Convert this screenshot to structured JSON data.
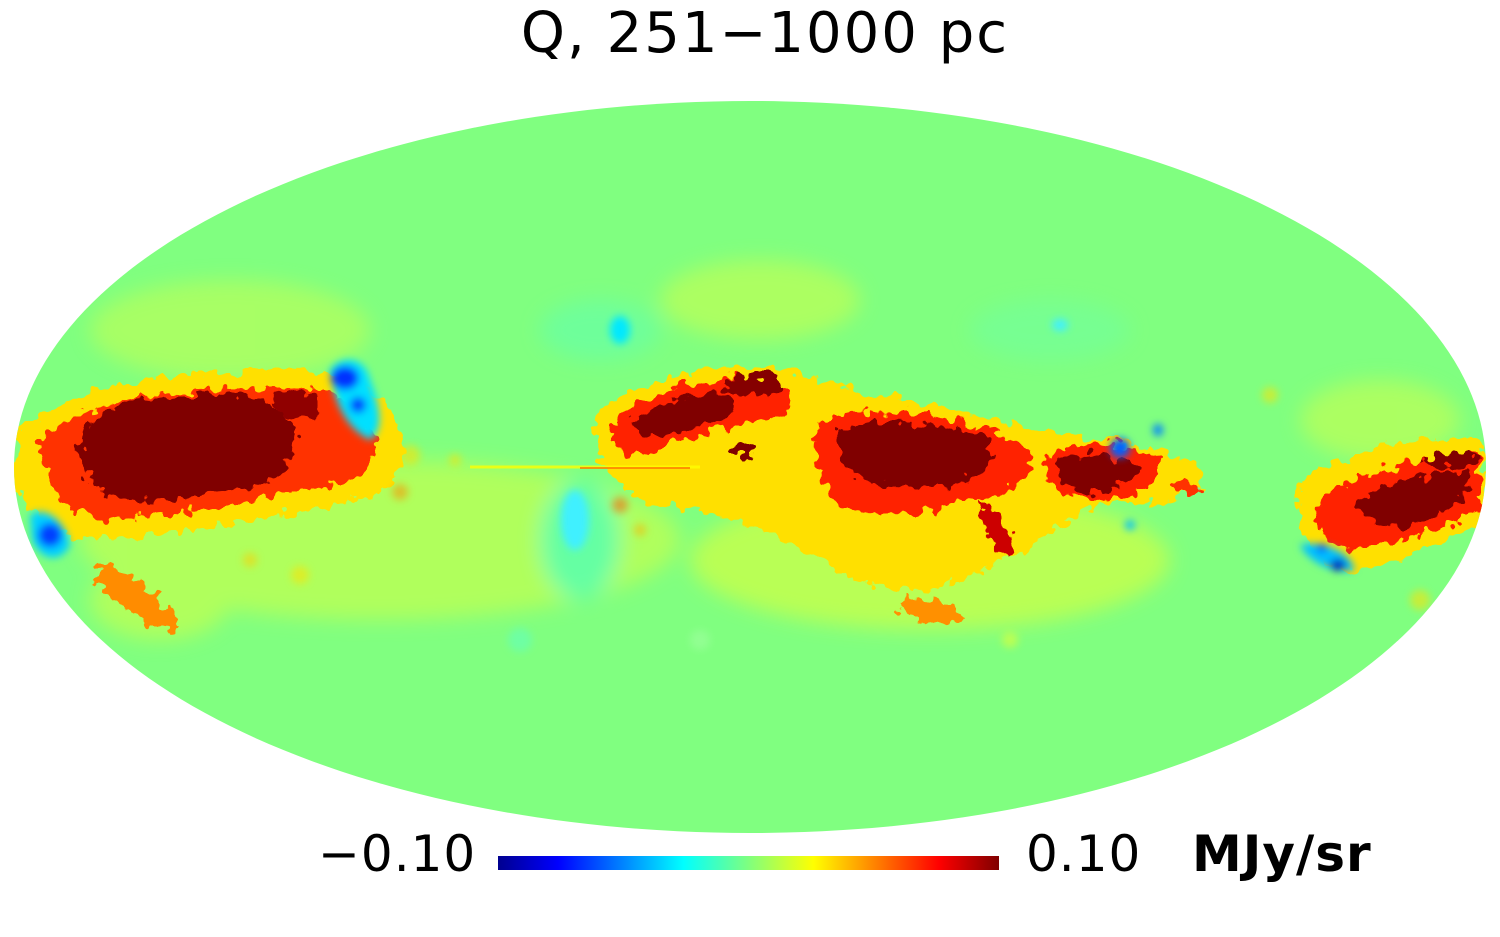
{
  "title": "Q, 251−1000 pc",
  "projection": "Mollweide all-sky",
  "colorbar": {
    "min_label": "−0.10",
    "max_label": "0.10",
    "unit": "MJy/sr",
    "min": -0.1,
    "max": 0.1,
    "colormap": "jet",
    "colors": [
      "#00008f",
      "#0000ff",
      "#00ffff",
      "#7fff7f",
      "#ffff00",
      "#ff0000",
      "#800000"
    ]
  },
  "background_color": "#80ff80",
  "features": [
    {
      "name": "strong positive region, left disk",
      "value": 0.1
    },
    {
      "name": "negative blob, upper left",
      "value": -0.1
    },
    {
      "name": "negative blob, far left",
      "value": -0.08
    },
    {
      "name": "positive region, center-left",
      "value": 0.1
    },
    {
      "name": "strong positive region, center-right",
      "value": 0.1
    },
    {
      "name": "positive region, right",
      "value": 0.1
    },
    {
      "name": "positive region, far right edge",
      "value": 0.1
    },
    {
      "name": "negative spots, lower right",
      "value": -0.1
    }
  ]
}
